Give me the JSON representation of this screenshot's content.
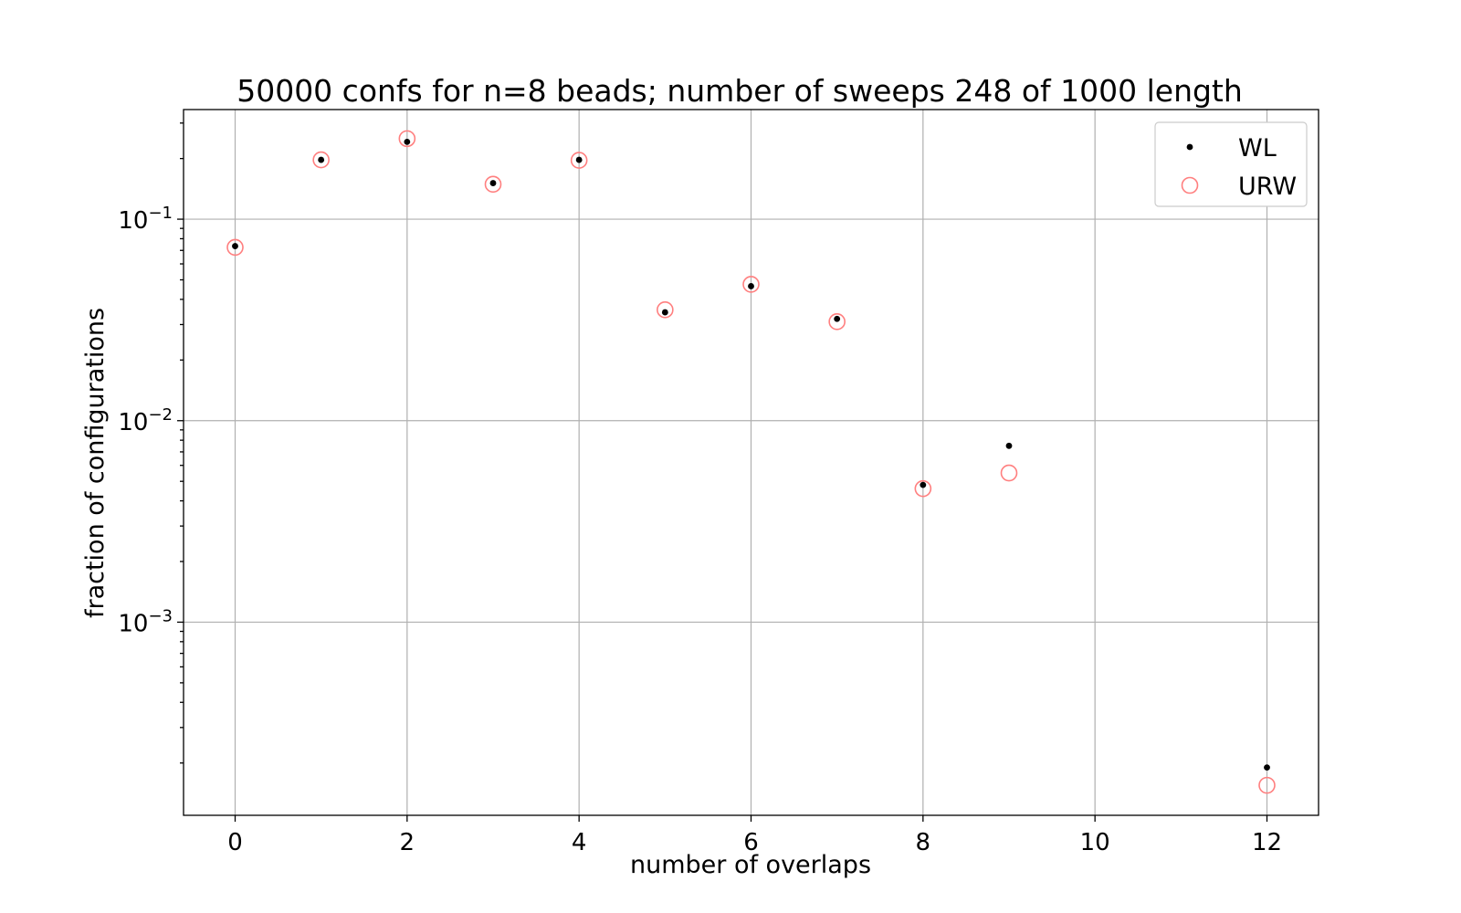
{
  "chart_data": {
    "type": "scatter",
    "title": "50000 confs for n=8 beads; number of sweeps 248 of 1000 length",
    "xlabel": "number of overlaps",
    "ylabel": "fraction of configurations",
    "yscale": "log",
    "xlim": [
      -0.6,
      12.6
    ],
    "ylim": [
      0.00011,
      0.35
    ],
    "xticks": [
      0,
      2,
      4,
      6,
      8,
      10,
      12
    ],
    "xtick_labels": [
      "0",
      "2",
      "4",
      "6",
      "8",
      "10",
      "12"
    ],
    "yticks": [
      0.001,
      0.01,
      0.1
    ],
    "ytick_labels": [
      {
        "base": "10",
        "exp": "−3"
      },
      {
        "base": "10",
        "exp": "−2"
      },
      {
        "base": "10",
        "exp": "−1"
      }
    ],
    "grid": true,
    "legend_position": "upper right",
    "series": [
      {
        "name": "WL",
        "marker": "dot",
        "color": "#000000",
        "x": [
          0,
          1,
          2,
          3,
          4,
          5,
          6,
          7,
          8,
          9,
          12
        ],
        "y": [
          0.0735,
          0.197,
          0.242,
          0.151,
          0.197,
          0.0345,
          0.0465,
          0.032,
          0.0048,
          0.0075,
          0.00019
        ]
      },
      {
        "name": "URW",
        "marker": "open-circle",
        "color": "#ff7f7f",
        "x": [
          0,
          1,
          2,
          3,
          4,
          5,
          6,
          7,
          8,
          9,
          12
        ],
        "y": [
          0.0725,
          0.197,
          0.251,
          0.149,
          0.196,
          0.0355,
          0.0475,
          0.031,
          0.0046,
          0.0055,
          0.000155
        ]
      }
    ]
  }
}
